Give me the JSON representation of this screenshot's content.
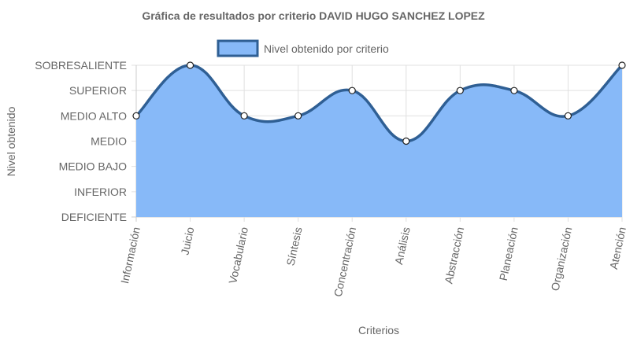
{
  "chart_data": {
    "type": "area",
    "title": "Gráfica de resultados por criterio DAVID HUGO SANCHEZ LOPEZ",
    "xlabel": "Criterios",
    "ylabel": "Nivel obtenido",
    "categories": [
      "Información",
      "Juicio",
      "Vocabulario",
      "Síntesis",
      "Concentración",
      "Análisis",
      "Abstracción",
      "Planeación",
      "Organización",
      "Atención"
    ],
    "y_levels": [
      "DEFICIENTE",
      "INFERIOR",
      "MEDIO BAJO",
      "MEDIO",
      "MEDIO ALTO",
      "SUPERIOR",
      "SOBRESALIENTE"
    ],
    "series": [
      {
        "name": "Nivel obtenido por criterio",
        "values": [
          "MEDIO ALTO",
          "SOBRESALIENTE",
          "MEDIO ALTO",
          "MEDIO ALTO",
          "SUPERIOR",
          "MEDIO",
          "SUPERIOR",
          "SUPERIOR",
          "MEDIO ALTO",
          "SOBRESALIENTE"
        ]
      }
    ],
    "legend": "top",
    "grid": true,
    "colors": {
      "fill": "#87b9f8",
      "line": "#2f5f94",
      "grid": "#e0e0e0",
      "text": "#666666",
      "point_fill": "#ffffff"
    }
  }
}
